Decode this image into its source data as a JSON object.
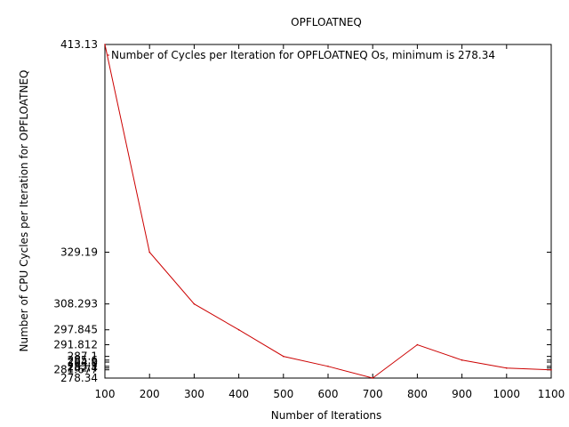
{
  "chart_data": {
    "type": "line",
    "title": "OPFLOATNEQ",
    "xlabel": "Number of Iterations",
    "ylabel": "Number of CPU Cycles per Iteration for OPFLOATNEQ",
    "xlim": [
      100,
      1100
    ],
    "ylim": [
      278.34,
      413.13
    ],
    "x_ticks": [
      100,
      200,
      300,
      400,
      500,
      600,
      700,
      800,
      900,
      1000,
      1100
    ],
    "y_ticks": [
      {
        "value": 278.34,
        "label": "278.34"
      },
      {
        "value": 281.677,
        "label": "281.677"
      },
      {
        "value": 282.4,
        "label": "282.4"
      },
      {
        "value": 283.1,
        "label": "283.1"
      },
      {
        "value": 284.8,
        "label": "284.8"
      },
      {
        "value": 285.6,
        "label": "285.6"
      },
      {
        "value": 287.1,
        "label": "287.1"
      },
      {
        "value": 291.812,
        "label": "291.812"
      },
      {
        "value": 297.845,
        "label": "297.845"
      },
      {
        "value": 308.293,
        "label": "308.293"
      },
      {
        "value": 329.19,
        "label": "329.19"
      },
      {
        "value": 413.13,
        "label": "413.13"
      }
    ],
    "grid": false,
    "legend_position": "top-left inside",
    "series": [
      {
        "name": "Number of Cycles per Iteration for OPFLOATNEQ Os, minimum is 278.34",
        "color": "#cc0000",
        "x": [
          100,
          200,
          300,
          400,
          500,
          600,
          700,
          800,
          900,
          1000,
          1100
        ],
        "y": [
          413.13,
          329.19,
          308.293,
          297.845,
          287.1,
          283.1,
          278.34,
          291.812,
          285.6,
          282.4,
          281.677
        ]
      }
    ]
  }
}
